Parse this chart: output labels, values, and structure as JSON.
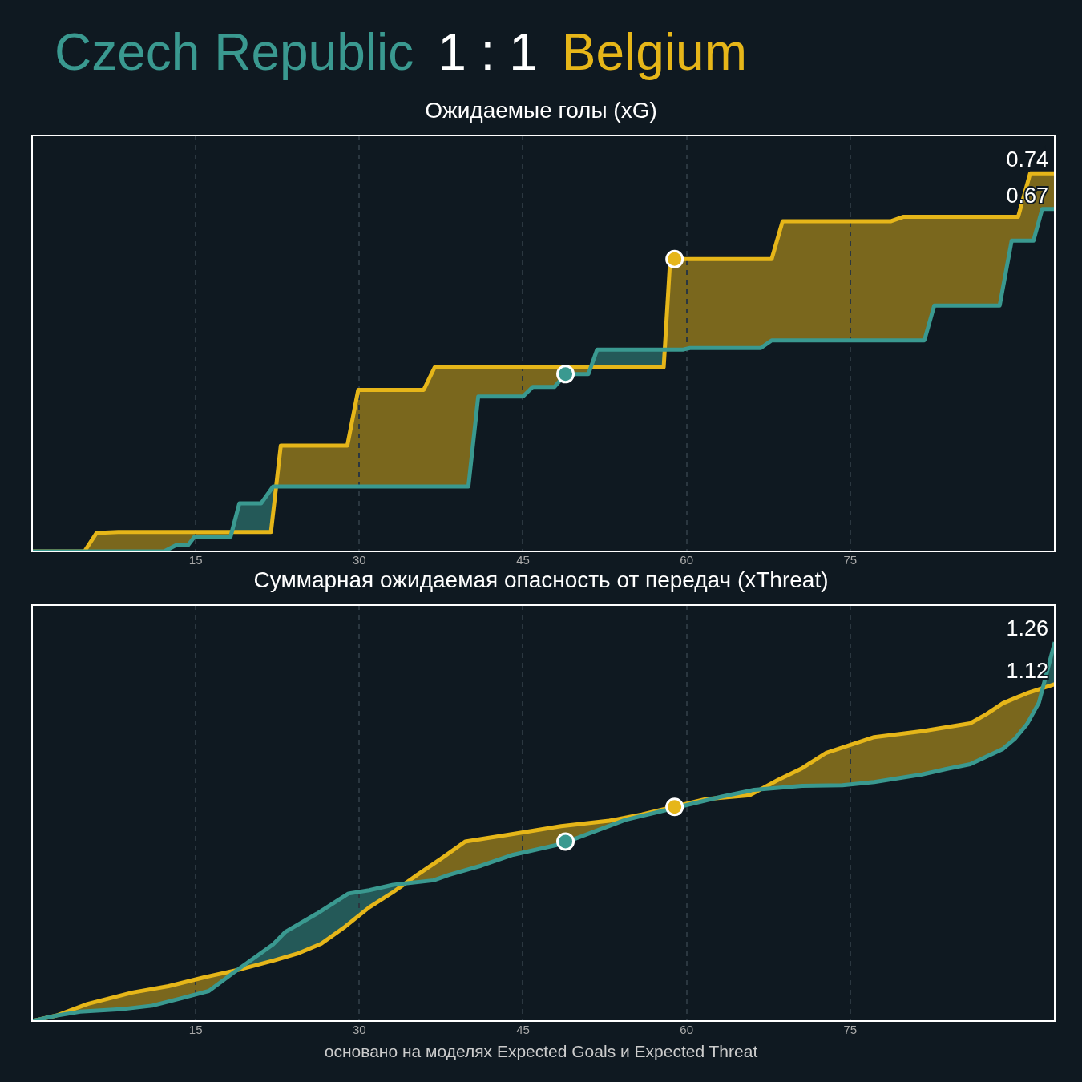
{
  "chart_data": [
    {
      "type": "line",
      "title": "1 : 1",
      "subtitle": "Ожидаемые голы (xG)",
      "xlim": [
        0,
        93.75
      ],
      "ylim": [
        0,
        0.814
      ],
      "xticks": [
        15,
        30,
        45,
        60,
        75
      ],
      "grid": "x",
      "tick_labels": "x",
      "legend": false,
      "line_style": "solid",
      "series": [
        {
          "name": "Czech Republic",
          "color": "#3a9990",
          "x": [
            0,
            12.1,
            13.2,
            14.3,
            14.9,
            18.2,
            19.0,
            21.0,
            22.1,
            40.0,
            40.9,
            45.0,
            45.9,
            47.9,
            48.9,
            51.0,
            51.8,
            59.7,
            60.3,
            66.8,
            67.8,
            81.8,
            82.7,
            88.7,
            89.8,
            91.8,
            92.6,
            93.75
          ],
          "values": [
            0,
            0,
            0.012,
            0.012,
            0.029,
            0.029,
            0.094,
            0.094,
            0.127,
            0.127,
            0.303,
            0.303,
            0.322,
            0.322,
            0.347,
            0.347,
            0.395,
            0.395,
            0.398,
            0.398,
            0.413,
            0.413,
            0.481,
            0.481,
            0.608,
            0.608,
            0.67,
            0.67
          ],
          "value_labels": [
            null,
            null,
            null,
            null,
            null,
            null,
            null,
            null,
            null,
            null,
            null,
            null,
            null,
            null,
            null,
            null,
            null,
            null,
            null,
            null,
            null,
            null,
            null,
            null,
            null,
            null,
            null,
            "0.67"
          ]
        },
        {
          "name": "Belgium",
          "color": "#e6b619",
          "x": [
            0,
            4.8,
            5.9,
            7.9,
            21.9,
            22.8,
            28.9,
            29.9,
            35.9,
            36.9,
            57.9,
            58.5,
            67.8,
            68.8,
            78.7,
            79.9,
            90.4,
            91.5,
            93.75
          ],
          "values": [
            0,
            0,
            0.036,
            0.038,
            0.038,
            0.207,
            0.207,
            0.316,
            0.316,
            0.36,
            0.36,
            0.572,
            0.572,
            0.646,
            0.646,
            0.655,
            0.655,
            0.74,
            0.74
          ],
          "value_labels": [
            null,
            null,
            null,
            null,
            null,
            null,
            null,
            null,
            null,
            null,
            null,
            null,
            null,
            null,
            null,
            null,
            null,
            null,
            "0.74"
          ]
        },
        {
          "type": "scatter",
          "marker": "circle",
          "color": "#3a9990",
          "x": [
            48.9
          ],
          "values": [
            0.347
          ]
        },
        {
          "type": "scatter",
          "marker": "circle",
          "color": "#e6b619",
          "x": [
            58.9
          ],
          "values": [
            0.572
          ]
        }
      ]
    },
    {
      "type": "line",
      "title": "Суммарная ожидаемая опасность от передач (xThreat)",
      "xlim": [
        0,
        93.75
      ],
      "ylim": [
        0,
        1.383
      ],
      "xticks": [
        15,
        30,
        45,
        60,
        75
      ],
      "grid": "x",
      "tick_labels": "x",
      "legend": false,
      "line_style": "solid",
      "annotations": [
        "основано на моделях Expected Goals и Expected Threat"
      ],
      "series": [
        {
          "color": "#3a9990",
          "x": [
            0,
            2.2,
            4.4,
            8.1,
            11.0,
            13.6,
            16.2,
            18.4,
            22.1,
            23.2,
            26.1,
            29.0,
            30.9,
            33.1,
            36.8,
            38.2,
            41.2,
            44.1,
            48.5,
            51.5,
            54.4,
            63.2,
            66.2,
            70.6,
            74.3,
            77.2,
            81.6,
            83.8,
            86.0,
            89.0,
            90.1,
            91.2,
            92.3,
            93.75
          ],
          "values": [
            0,
            0.018,
            0.031,
            0.039,
            0.051,
            0.075,
            0.1,
            0.159,
            0.255,
            0.296,
            0.357,
            0.424,
            0.435,
            0.453,
            0.468,
            0.486,
            0.517,
            0.553,
            0.589,
            0.63,
            0.669,
            0.746,
            0.769,
            0.782,
            0.784,
            0.795,
            0.82,
            0.838,
            0.854,
            0.905,
            0.939,
            0.987,
            1.059,
            1.26
          ],
          "value_labels": [
            null,
            null,
            null,
            null,
            null,
            null,
            null,
            null,
            null,
            null,
            null,
            null,
            null,
            null,
            null,
            null,
            null,
            null,
            null,
            null,
            null,
            null,
            null,
            null,
            null,
            null,
            null,
            null,
            null,
            null,
            null,
            null,
            null,
            "1.26"
          ]
        },
        {
          "color": "#e6b619",
          "x": [
            0,
            2.2,
            5.1,
            9.2,
            12.5,
            16.2,
            19.1,
            22.1,
            24.3,
            26.5,
            28.7,
            30.9,
            33.1,
            35.3,
            37.5,
            39.7,
            44.1,
            48.5,
            52.9,
            55.9,
            58.8,
            61.8,
            65.8,
            68.4,
            70.6,
            72.8,
            74.3,
            77.2,
            81.6,
            86.0,
            87.5,
            89.0,
            91.2,
            93.75
          ],
          "values": [
            0,
            0.018,
            0.057,
            0.095,
            0.116,
            0.149,
            0.172,
            0.201,
            0.224,
            0.257,
            0.314,
            0.378,
            0.429,
            0.486,
            0.54,
            0.597,
            0.622,
            0.648,
            0.666,
            0.687,
            0.712,
            0.738,
            0.751,
            0.802,
            0.841,
            0.892,
            0.91,
            0.944,
            0.964,
            0.99,
            1.021,
            1.057,
            1.09,
            1.12
          ],
          "value_labels": [
            null,
            null,
            null,
            null,
            null,
            null,
            null,
            null,
            null,
            null,
            null,
            null,
            null,
            null,
            null,
            null,
            null,
            null,
            null,
            null,
            null,
            null,
            null,
            null,
            null,
            null,
            null,
            null,
            null,
            null,
            null,
            null,
            null,
            "1.12"
          ]
        },
        {
          "type": "scatter",
          "marker": "circle",
          "color": "#3a9990",
          "x": [
            48.9
          ],
          "values": [
            0.597
          ]
        },
        {
          "type": "scatter",
          "marker": "circle",
          "color": "#e6b619",
          "x": [
            58.9
          ],
          "values": [
            0.712
          ]
        }
      ]
    }
  ]
}
